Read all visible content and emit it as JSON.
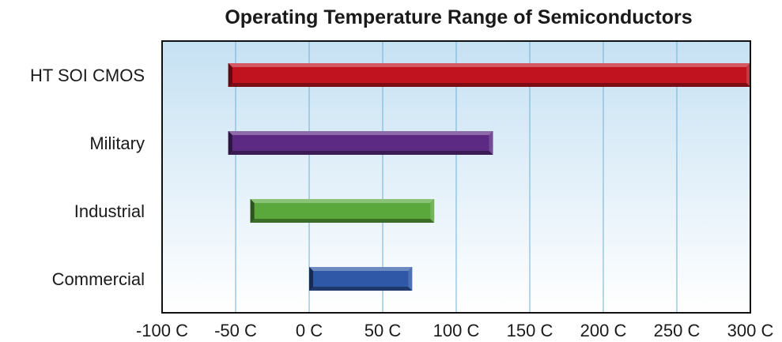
{
  "colors": {
    "background_gradient": [
      "#c6e1f3",
      "#ffffff"
    ],
    "gridline": "#6fb0d6",
    "axis_frame": "#111111",
    "bar_colors": [
      "#c1121f",
      "#5c2a82",
      "#5aa83c",
      "#2f58a6"
    ]
  },
  "chart_data": {
    "type": "bar",
    "orientation": "horizontal",
    "style": "floating-range",
    "title": "Operating Temperature Range of Semiconductors",
    "xlabel": "",
    "ylabel": "",
    "xlim": [
      -100,
      300
    ],
    "x_ticks": [
      -100,
      -50,
      0,
      50,
      100,
      150,
      200,
      250,
      300
    ],
    "x_tick_labels": [
      "-100 C",
      "-50 C",
      "0 C",
      "50 C",
      "100 C",
      "150 C",
      "200 C",
      "250 C",
      "300 C"
    ],
    "grid": "vertical",
    "legend": "none",
    "categories": [
      "HT SOI CMOS",
      "Military",
      "Industrial",
      "Commercial"
    ],
    "ranges": [
      {
        "low": -55,
        "high": 300
      },
      {
        "low": -55,
        "high": 125
      },
      {
        "low": -40,
        "high": 85
      },
      {
        "low": 0,
        "high": 70
      }
    ]
  }
}
